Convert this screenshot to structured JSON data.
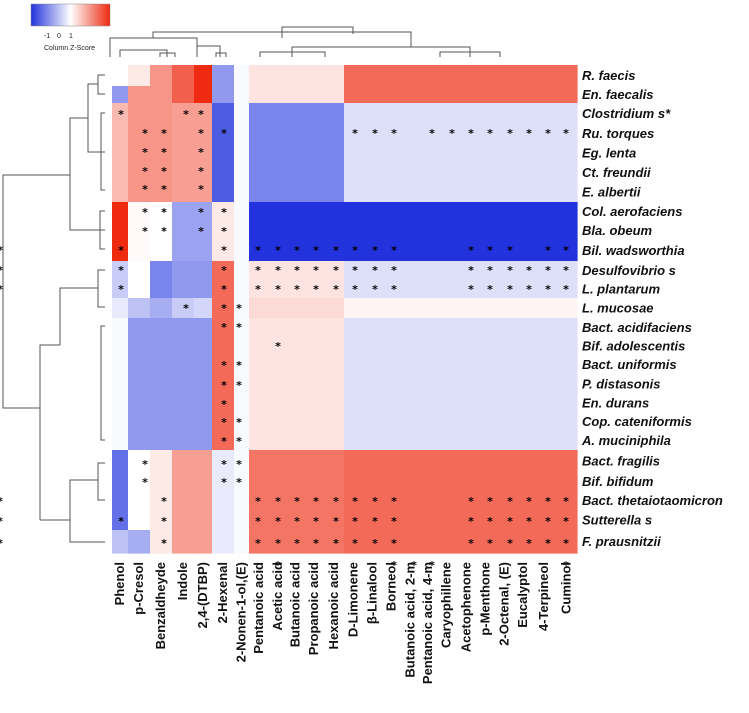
{
  "chart_data": {
    "type": "heatmap",
    "color_key": {
      "label": "Column Z-Score",
      "ticks": [
        "-1",
        "0",
        "1"
      ],
      "low_color": "#2233dd",
      "mid_color": "#ffffff",
      "high_color": "#ee2a10"
    },
    "rows": [
      "R. faecis",
      "En. faecalis",
      "Clostridium s*",
      "Ru. torques",
      "Eg. lenta",
      "Ct. freundii",
      "E. albertii",
      "Col. aerofaciens",
      "Bla. obeum",
      "Bil. wadsworthia",
      "Desulfovibrio s",
      "L. plantarum",
      "L. mucosae",
      "Bact. acidifaciens",
      "Bif. adolescentis",
      "Bact. uniformis",
      "P. distasonis",
      "En. durans",
      "Cop. cateniformis",
      "A. muciniphila",
      "Bact. fragilis",
      "Bif. bifidum",
      "Bact. thetaiotaomicron",
      "Sutterella s",
      "F. prausnitzii"
    ],
    "columns": [
      "Phenol",
      "p-Cresol",
      "Benzaldheyde",
      "Indole",
      "2,4-(DTBP)",
      "2-Hexenal",
      "2-Nonen-1-ol,(E)",
      "Pentanoic acid",
      "Acetic acid",
      "Butanoic acid",
      "Propanoic acid",
      "Hexanoic acid",
      "D-Limonene",
      "β-Linalool",
      "Borneol",
      "Butanoic acid, 2-m",
      "Pentanoic acid, 4-m",
      "Caryophillene",
      "Acetophenone",
      "p-Menthone",
      "2-Octenal, (E)",
      "Eucalyptol",
      "4-Terpineol",
      "Cuminol"
    ],
    "values": [
      [
        0.0,
        0.2,
        1.0,
        1.5,
        2.5,
        -1.0,
        -0.05,
        0.25,
        0.25,
        0.25,
        0.25,
        0.25,
        1.4,
        1.4,
        1.4,
        1.4,
        1.4,
        1.4,
        1.4,
        1.4,
        1.4,
        1.4,
        1.4,
        1.4
      ],
      [
        -1.0,
        1.0,
        1.0,
        1.5,
        2.5,
        -1.0,
        -0.05,
        0.25,
        0.25,
        0.25,
        0.25,
        0.25,
        1.4,
        1.4,
        1.4,
        1.4,
        1.4,
        1.4,
        1.4,
        1.4,
        1.4,
        1.4,
        1.4,
        1.4
      ],
      [
        0.65,
        1.0,
        1.0,
        0.9,
        0.9,
        -1.6,
        -0.05,
        -1.2,
        -1.2,
        -1.2,
        -1.2,
        -1.2,
        -0.3,
        -0.3,
        -0.3,
        -0.3,
        -0.3,
        -0.3,
        -0.3,
        -0.3,
        -0.3,
        -0.3,
        -0.3,
        -0.3
      ],
      [
        0.65,
        1.0,
        1.0,
        0.9,
        0.9,
        -1.6,
        -0.05,
        -1.2,
        -1.2,
        -1.2,
        -1.2,
        -1.2,
        -0.3,
        -0.3,
        -0.3,
        -0.3,
        -0.3,
        -0.3,
        -0.3,
        -0.3,
        -0.3,
        -0.3,
        -0.3,
        -0.3
      ],
      [
        0.65,
        1.0,
        1.0,
        0.9,
        0.9,
        -1.6,
        -0.05,
        -1.2,
        -1.2,
        -1.2,
        -1.2,
        -1.2,
        -0.3,
        -0.3,
        -0.3,
        -0.3,
        -0.3,
        -0.3,
        -0.3,
        -0.3,
        -0.3,
        -0.3,
        -0.3,
        -0.3
      ],
      [
        0.65,
        1.0,
        1.0,
        0.9,
        0.9,
        -1.6,
        -0.05,
        -1.2,
        -1.2,
        -1.2,
        -1.2,
        -1.2,
        -0.3,
        -0.3,
        -0.3,
        -0.3,
        -0.3,
        -0.3,
        -0.3,
        -0.3,
        -0.3,
        -0.3,
        -0.3,
        -0.3
      ],
      [
        0.65,
        1.0,
        1.0,
        0.9,
        0.9,
        -1.6,
        -0.05,
        -1.2,
        -1.2,
        -1.2,
        -1.2,
        -1.2,
        -0.3,
        -0.3,
        -0.3,
        -0.3,
        -0.3,
        -0.3,
        -0.3,
        -0.3,
        -0.3,
        -0.3,
        -0.3,
        -0.3
      ],
      [
        2.5,
        0.05,
        0.0,
        -0.9,
        -0.9,
        0.2,
        -0.05,
        -2.5,
        -2.5,
        -2.5,
        -2.5,
        -2.5,
        -2.5,
        -2.5,
        -2.5,
        -2.5,
        -2.5,
        -2.5,
        -2.5,
        -2.5,
        -2.5,
        -2.5,
        -2.5,
        -2.5
      ],
      [
        2.5,
        0.05,
        0.0,
        -0.9,
        -0.9,
        0.2,
        -0.05,
        -2.5,
        -2.5,
        -2.5,
        -2.5,
        -2.5,
        -2.5,
        -2.5,
        -2.5,
        -2.5,
        -2.5,
        -2.5,
        -2.5,
        -2.5,
        -2.5,
        -2.5,
        -2.5,
        -2.5
      ],
      [
        2.5,
        0.05,
        0.0,
        -0.9,
        -0.9,
        0.2,
        -0.05,
        -2.5,
        -2.5,
        -2.5,
        -2.5,
        -2.5,
        -2.5,
        -2.5,
        -2.5,
        -2.5,
        -2.5,
        -2.5,
        -2.5,
        -2.5,
        -2.5,
        -2.5,
        -2.5,
        -2.5
      ],
      [
        -0.5,
        0.0,
        -1.2,
        -1.0,
        -1.0,
        1.4,
        -0.05,
        0.25,
        0.25,
        0.25,
        0.25,
        0.25,
        -0.3,
        -0.3,
        -0.3,
        -0.3,
        -0.3,
        -0.3,
        -0.3,
        -0.3,
        -0.3,
        -0.3,
        -0.3,
        -0.3
      ],
      [
        -0.5,
        0.0,
        -1.2,
        -1.0,
        -1.0,
        1.4,
        -0.05,
        0.25,
        0.25,
        0.25,
        0.25,
        0.25,
        -0.3,
        -0.3,
        -0.3,
        -0.3,
        -0.3,
        -0.3,
        -0.3,
        -0.3,
        -0.3,
        -0.3,
        -0.3,
        -0.3
      ],
      [
        -0.2,
        -0.6,
        -0.8,
        -0.5,
        -0.4,
        1.4,
        -0.05,
        0.35,
        0.35,
        0.35,
        0.35,
        0.35,
        0.1,
        0.1,
        0.1,
        0.1,
        0.1,
        0.1,
        0.1,
        0.1,
        0.1,
        0.1,
        0.1,
        0.1
      ],
      [
        -0.05,
        -1.0,
        -1.0,
        -1.0,
        -1.0,
        1.4,
        -0.05,
        0.25,
        0.25,
        0.25,
        0.25,
        0.25,
        -0.3,
        -0.3,
        -0.3,
        -0.3,
        -0.3,
        -0.3,
        -0.3,
        -0.3,
        -0.3,
        -0.3,
        -0.3,
        -0.3
      ],
      [
        -0.05,
        -1.0,
        -1.0,
        -1.0,
        -1.0,
        1.4,
        -0.05,
        0.25,
        0.25,
        0.25,
        0.25,
        0.25,
        -0.3,
        -0.3,
        -0.3,
        -0.3,
        -0.3,
        -0.3,
        -0.3,
        -0.3,
        -0.3,
        -0.3,
        -0.3,
        -0.3
      ],
      [
        -0.05,
        -1.0,
        -1.0,
        -1.0,
        -1.0,
        1.4,
        -0.05,
        0.25,
        0.25,
        0.25,
        0.25,
        0.25,
        -0.3,
        -0.3,
        -0.3,
        -0.3,
        -0.3,
        -0.3,
        -0.3,
        -0.3,
        -0.3,
        -0.3,
        -0.3,
        -0.3
      ],
      [
        -0.05,
        -1.0,
        -1.0,
        -1.0,
        -1.0,
        1.4,
        -0.05,
        0.25,
        0.25,
        0.25,
        0.25,
        0.25,
        -0.3,
        -0.3,
        -0.3,
        -0.3,
        -0.3,
        -0.3,
        -0.3,
        -0.3,
        -0.3,
        -0.3,
        -0.3,
        -0.3
      ],
      [
        -0.05,
        -1.0,
        -1.0,
        -1.0,
        -1.0,
        1.4,
        -0.05,
        0.25,
        0.25,
        0.25,
        0.25,
        0.25,
        -0.3,
        -0.3,
        -0.3,
        -0.3,
        -0.3,
        -0.3,
        -0.3,
        -0.3,
        -0.3,
        -0.3,
        -0.3,
        -0.3
      ],
      [
        -0.05,
        -1.0,
        -1.0,
        -1.0,
        -1.0,
        1.4,
        -0.05,
        0.25,
        0.25,
        0.25,
        0.25,
        0.25,
        -0.3,
        -0.3,
        -0.3,
        -0.3,
        -0.3,
        -0.3,
        -0.3,
        -0.3,
        -0.3,
        -0.3,
        -0.3,
        -0.3
      ],
      [
        -0.05,
        -1.0,
        -1.0,
        -1.0,
        -1.0,
        1.4,
        -0.05,
        0.25,
        0.25,
        0.25,
        0.25,
        0.25,
        -0.3,
        -0.3,
        -0.3,
        -0.3,
        -0.3,
        -0.3,
        -0.3,
        -0.3,
        -0.3,
        -0.3,
        -0.3,
        -0.3
      ],
      [
        -1.4,
        0.0,
        0.2,
        0.9,
        0.9,
        -0.2,
        -0.05,
        1.3,
        1.3,
        1.3,
        1.3,
        1.3,
        1.4,
        1.4,
        1.4,
        1.4,
        1.4,
        1.4,
        1.4,
        1.4,
        1.4,
        1.4,
        1.4,
        1.4
      ],
      [
        -1.4,
        0.0,
        0.2,
        0.9,
        0.9,
        -0.2,
        -0.05,
        1.3,
        1.3,
        1.3,
        1.3,
        1.3,
        1.4,
        1.4,
        1.4,
        1.4,
        1.4,
        1.4,
        1.4,
        1.4,
        1.4,
        1.4,
        1.4,
        1.4
      ],
      [
        -1.4,
        0.0,
        0.2,
        0.9,
        0.9,
        -0.2,
        -0.05,
        1.3,
        1.3,
        1.3,
        1.3,
        1.3,
        1.4,
        1.4,
        1.4,
        1.4,
        1.4,
        1.4,
        1.4,
        1.4,
        1.4,
        1.4,
        1.4,
        1.4
      ],
      [
        -1.4,
        0.0,
        0.2,
        0.9,
        0.9,
        -0.2,
        -0.05,
        1.3,
        1.3,
        1.3,
        1.3,
        1.3,
        1.4,
        1.4,
        1.4,
        1.4,
        1.4,
        1.4,
        1.4,
        1.4,
        1.4,
        1.4,
        1.4,
        1.4
      ],
      [
        -0.6,
        -0.8,
        0.2,
        0.9,
        0.9,
        -0.2,
        -0.05,
        1.3,
        1.3,
        1.3,
        1.3,
        1.3,
        1.4,
        1.4,
        1.4,
        1.4,
        1.4,
        1.4,
        1.4,
        1.4,
        1.4,
        1.4,
        1.4,
        1.4
      ]
    ],
    "significance_marker": "*",
    "significant": [
      [
        2,
        0
      ],
      [
        2,
        3
      ],
      [
        2,
        4
      ],
      [
        3,
        1
      ],
      [
        3,
        2
      ],
      [
        3,
        4
      ],
      [
        3,
        5
      ],
      [
        3,
        12
      ],
      [
        3,
        13
      ],
      [
        3,
        14
      ],
      [
        3,
        16
      ],
      [
        3,
        17
      ],
      [
        3,
        18
      ],
      [
        3,
        19
      ],
      [
        3,
        20
      ],
      [
        3,
        21
      ],
      [
        3,
        22
      ],
      [
        3,
        23
      ],
      [
        4,
        1
      ],
      [
        4,
        2
      ],
      [
        4,
        4
      ],
      [
        5,
        1
      ],
      [
        5,
        2
      ],
      [
        5,
        4
      ],
      [
        6,
        1
      ],
      [
        6,
        2
      ],
      [
        6,
        4
      ],
      [
        7,
        1
      ],
      [
        7,
        2
      ],
      [
        7,
        4
      ],
      [
        7,
        5
      ],
      [
        8,
        1
      ],
      [
        8,
        2
      ],
      [
        8,
        4
      ],
      [
        8,
        5
      ],
      [
        9,
        0
      ],
      [
        9,
        5
      ],
      [
        9,
        7
      ],
      [
        9,
        8
      ],
      [
        9,
        9
      ],
      [
        9,
        10
      ],
      [
        9,
        11
      ],
      [
        9,
        12
      ],
      [
        9,
        13
      ],
      [
        9,
        14
      ],
      [
        9,
        18
      ],
      [
        9,
        19
      ],
      [
        9,
        20
      ],
      [
        9,
        22
      ],
      [
        9,
        23
      ],
      [
        9,
        24
      ],
      [
        10,
        0
      ],
      [
        10,
        5
      ],
      [
        10,
        7
      ],
      [
        10,
        8
      ],
      [
        10,
        9
      ],
      [
        10,
        10
      ],
      [
        10,
        11
      ],
      [
        10,
        12
      ],
      [
        10,
        13
      ],
      [
        10,
        14
      ],
      [
        10,
        18
      ],
      [
        10,
        19
      ],
      [
        10,
        20
      ],
      [
        10,
        21
      ],
      [
        10,
        22
      ],
      [
        10,
        23
      ],
      [
        10,
        24
      ],
      [
        11,
        0
      ],
      [
        11,
        5
      ],
      [
        11,
        7
      ],
      [
        11,
        8
      ],
      [
        11,
        9
      ],
      [
        11,
        10
      ],
      [
        11,
        11
      ],
      [
        11,
        12
      ],
      [
        11,
        13
      ],
      [
        11,
        14
      ],
      [
        11,
        18
      ],
      [
        11,
        19
      ],
      [
        11,
        20
      ],
      [
        11,
        21
      ],
      [
        11,
        22
      ],
      [
        11,
        23
      ],
      [
        11,
        24
      ],
      [
        12,
        3
      ],
      [
        12,
        5
      ],
      [
        12,
        6
      ],
      [
        13,
        5
      ],
      [
        13,
        6
      ],
      [
        14,
        8
      ],
      [
        15,
        5
      ],
      [
        15,
        6
      ],
      [
        16,
        5
      ],
      [
        16,
        6
      ],
      [
        17,
        5
      ],
      [
        18,
        5
      ],
      [
        18,
        6
      ],
      [
        19,
        5
      ],
      [
        19,
        6
      ],
      [
        20,
        1
      ],
      [
        20,
        5
      ],
      [
        20,
        6
      ],
      [
        21,
        1
      ],
      [
        21,
        5
      ],
      [
        21,
        6
      ],
      [
        22,
        2
      ],
      [
        22,
        7
      ],
      [
        22,
        8
      ],
      [
        22,
        9
      ],
      [
        22,
        10
      ],
      [
        22,
        11
      ],
      [
        22,
        12
      ],
      [
        22,
        13
      ],
      [
        22,
        14
      ],
      [
        22,
        18
      ],
      [
        22,
        19
      ],
      [
        22,
        20
      ],
      [
        22,
        21
      ],
      [
        22,
        22
      ],
      [
        22,
        23
      ],
      [
        22,
        24
      ],
      [
        23,
        0
      ],
      [
        23,
        2
      ],
      [
        23,
        7
      ],
      [
        23,
        8
      ],
      [
        23,
        9
      ],
      [
        23,
        10
      ],
      [
        23,
        11
      ],
      [
        23,
        12
      ],
      [
        23,
        13
      ],
      [
        23,
        14
      ],
      [
        23,
        18
      ],
      [
        23,
        19
      ],
      [
        23,
        20
      ],
      [
        23,
        21
      ],
      [
        23,
        22
      ],
      [
        23,
        23
      ],
      [
        23,
        24
      ],
      [
        24,
        2
      ],
      [
        24,
        7
      ],
      [
        24,
        8
      ],
      [
        24,
        9
      ],
      [
        24,
        10
      ],
      [
        24,
        11
      ],
      [
        24,
        12
      ],
      [
        24,
        13
      ],
      [
        24,
        14
      ],
      [
        24,
        18
      ],
      [
        24,
        19
      ],
      [
        24,
        20
      ],
      [
        24,
        21
      ],
      [
        24,
        22
      ],
      [
        24,
        23
      ],
      [
        24,
        24
      ],
      [
        25,
        8
      ],
      [
        25,
        14
      ],
      [
        25,
        15
      ],
      [
        25,
        16
      ],
      [
        25,
        23
      ],
      [
        26,
        1
      ],
      [
        26,
        8
      ],
      [
        26,
        9
      ],
      [
        26,
        10
      ],
      [
        26,
        11
      ],
      [
        26,
        12
      ],
      [
        26,
        18
      ],
      [
        26,
        19
      ],
      [
        26,
        20
      ],
      [
        26,
        21
      ],
      [
        26,
        22
      ],
      [
        26,
        23
      ],
      [
        26,
        24
      ]
    ]
  }
}
